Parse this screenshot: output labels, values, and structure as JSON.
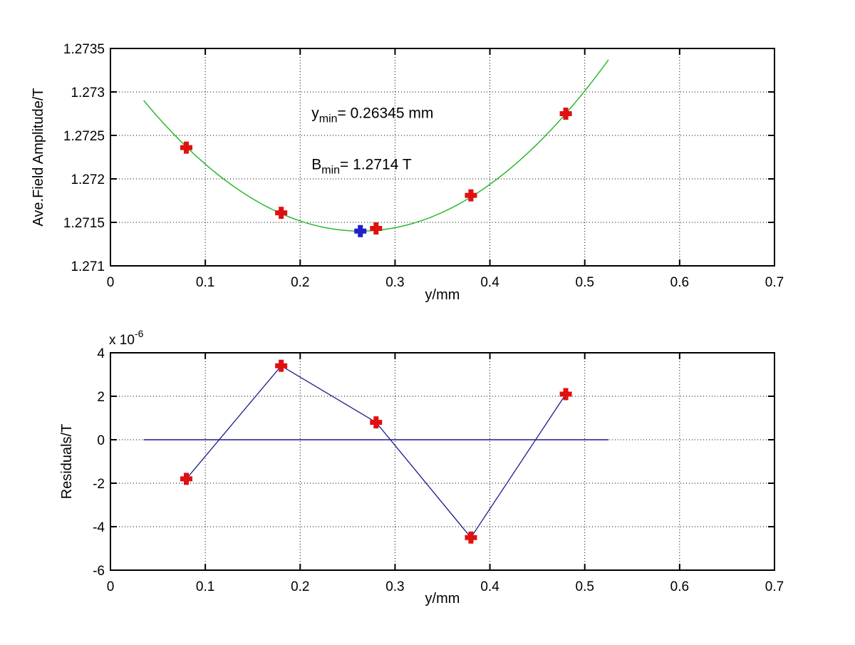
{
  "figure": {
    "background": "#ffffff",
    "grid_color": "#000000",
    "axis_color": "#000000"
  },
  "chart_data": [
    {
      "id": "field-amplitude",
      "type": "scatter",
      "title": "",
      "xlabel": "y/mm",
      "ylabel": "Ave.Field Amplitude/T",
      "xlim": [
        0,
        0.7
      ],
      "ylim": [
        1.271,
        1.2735
      ],
      "grid": true,
      "xticks": {
        "values": [
          0,
          0.1,
          0.2,
          0.3,
          0.4,
          0.5,
          0.6,
          0.7
        ],
        "labels": [
          "0",
          "0.1",
          "0.2",
          "0.3",
          "0.4",
          "0.5",
          "0.6",
          "0.7"
        ]
      },
      "yticks": {
        "values": [
          1.271,
          1.2715,
          1.272,
          1.2725,
          1.273,
          1.2735
        ],
        "labels": [
          "1.271",
          "1.2715",
          "1.272",
          "1.2725",
          "1.273",
          "1.2735"
        ]
      },
      "data_points": {
        "marker": "plus",
        "color": "#e01010",
        "x": [
          0.08,
          0.18,
          0.28,
          0.38,
          0.48
        ],
        "y": [
          1.27236,
          1.27161,
          1.27143,
          1.27181,
          1.27275
        ]
      },
      "min_point": {
        "marker": "plus",
        "color": "#2020cc",
        "x": 0.26345,
        "y": 1.2714
      },
      "fit_curve": {
        "color": "#2eb82e",
        "vertex_x": 0.26345,
        "vertex_y": 1.2714,
        "coeff_a": 0.0288,
        "x_start": 0.035,
        "x_end": 0.525
      },
      "annotations": [
        {
          "x": 0.212,
          "y": 1.2727,
          "base": "y",
          "sub": "min",
          "rest": "= 0.26345 mm"
        },
        {
          "x": 0.212,
          "y": 1.27211,
          "base": "B",
          "sub": "min",
          "rest": "= 1.2714 T"
        }
      ]
    },
    {
      "id": "residuals",
      "type": "line",
      "title": "",
      "xlabel": "y/mm",
      "ylabel": "Residuals/T",
      "scale_label": {
        "mantissa": "x 10",
        "exponent": "-6"
      },
      "unit": "1e-6 T",
      "xlim": [
        0,
        0.7
      ],
      "ylim": [
        -6,
        4
      ],
      "grid": true,
      "xticks": {
        "values": [
          0,
          0.1,
          0.2,
          0.3,
          0.4,
          0.5,
          0.6,
          0.7
        ],
        "labels": [
          "0",
          "0.1",
          "0.2",
          "0.3",
          "0.4",
          "0.5",
          "0.6",
          "0.7"
        ]
      },
      "yticks": {
        "values": [
          -6,
          -4,
          -2,
          0,
          2,
          4
        ],
        "labels": [
          "-6",
          "-4",
          "-2",
          "0",
          "2",
          "4"
        ]
      },
      "data_points": {
        "marker": "plus",
        "color": "#e01010",
        "x": [
          0.08,
          0.18,
          0.28,
          0.38,
          0.48
        ],
        "y": [
          -1.8,
          3.4,
          0.8,
          -4.5,
          2.1
        ]
      },
      "connect_line": {
        "color": "#1a1a8c"
      },
      "zero_line": {
        "color": "#1a1a8c",
        "y": 0,
        "x_start": 0.035,
        "x_end": 0.525
      }
    }
  ]
}
